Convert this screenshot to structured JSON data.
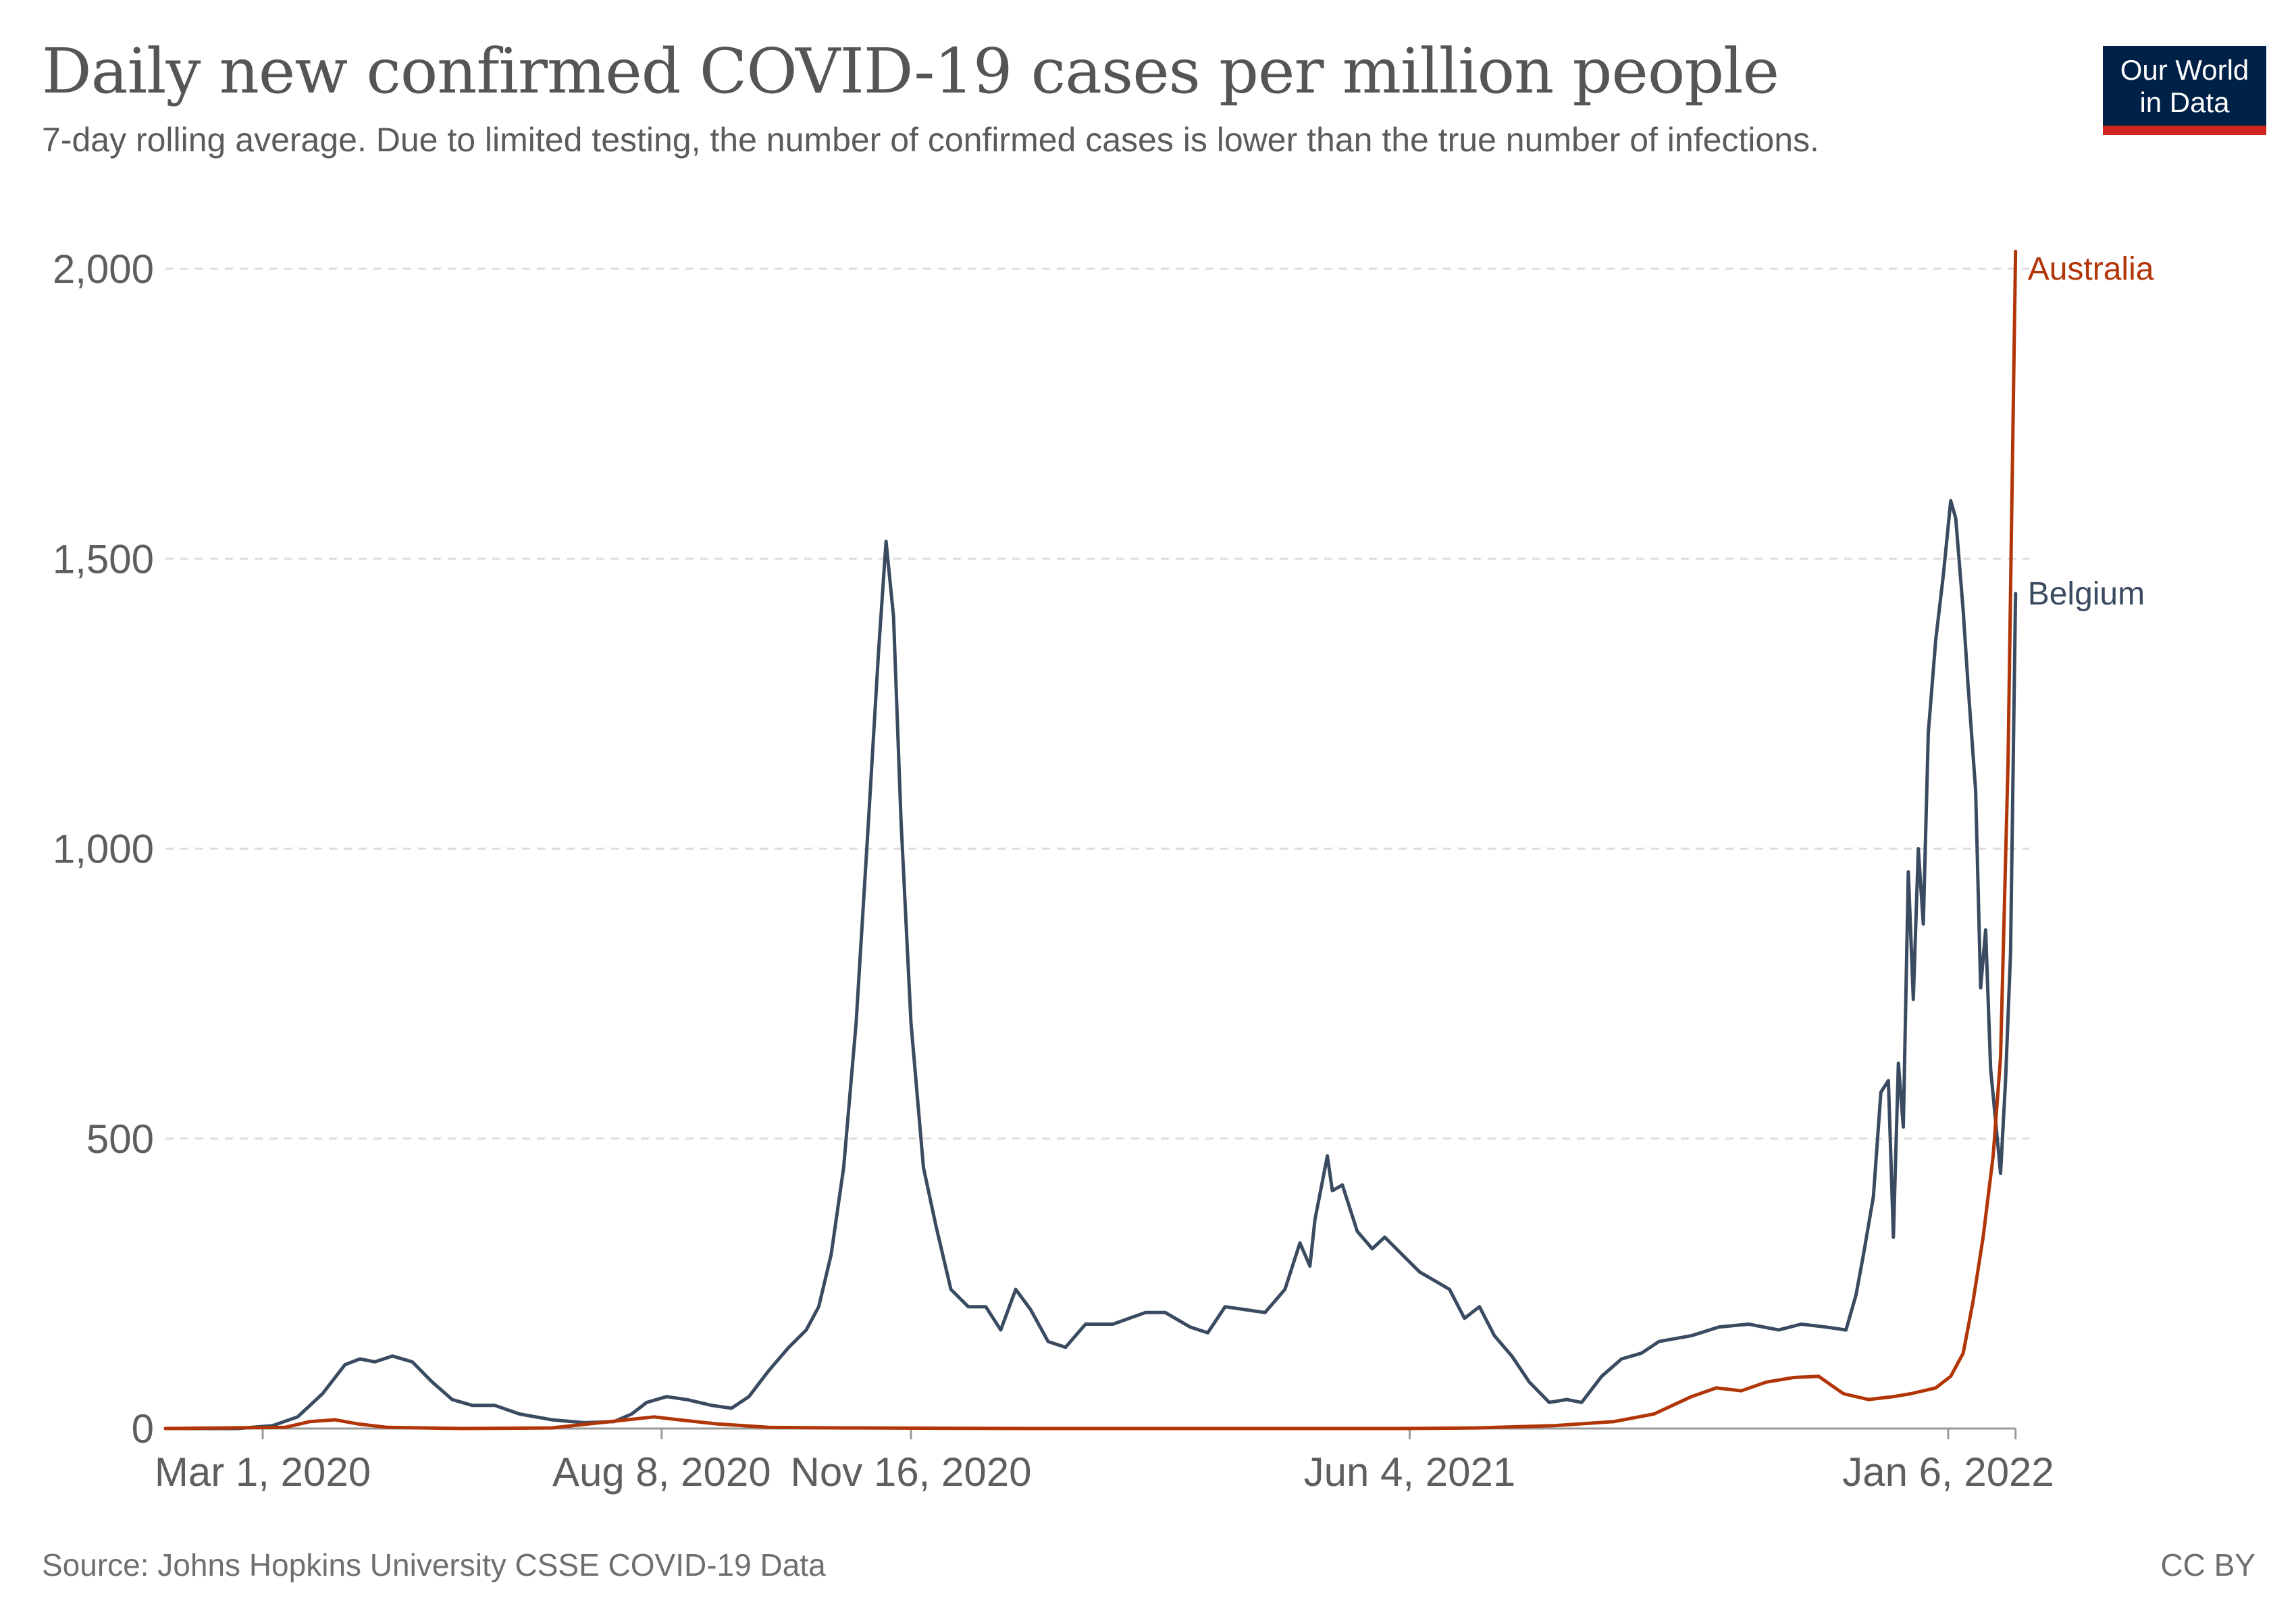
{
  "header": {
    "title": "Daily new confirmed COVID-19 cases per million people",
    "subtitle": "7-day rolling average. Due to limited testing, the number of confirmed cases is lower than the true number of infections.",
    "logo_line1": "Our World",
    "logo_line2": "in Data"
  },
  "footer": {
    "source": "Source: Johns Hopkins University CSSE COVID-19 Data",
    "license": "CC BY"
  },
  "colors": {
    "belgium": "#3a4a60",
    "australia": "#b13507",
    "grid": "#dddddd",
    "logo_bg": "#002147",
    "logo_bar": "#ce261e"
  },
  "chart_data": {
    "type": "line",
    "title": "Daily new confirmed COVID-19 cases per million people",
    "subtitle": "7-day rolling average. Due to limited testing, the number of confirmed cases is lower than the true number of infections.",
    "xlabel": "",
    "ylabel": "",
    "x_range": [
      "2020-01-22",
      "2022-01-22"
    ],
    "ylim": [
      0,
      2000
    ],
    "y_ticks": [
      0,
      500,
      1000,
      1500,
      2000
    ],
    "y_tick_labels": [
      "0",
      "500",
      "1,000",
      "1,500",
      "2,000"
    ],
    "x_ticks": [
      "2020-03-01",
      "2020-08-08",
      "2020-11-16",
      "2021-06-04",
      "2022-01-06"
    ],
    "x_tick_labels": [
      "Mar 1, 2020",
      "Aug 8, 2020",
      "Nov 16, 2020",
      "Jun 4, 2021",
      "Jan 6, 2022"
    ],
    "grid": "horizontal dashed",
    "legend": "inline labels at line ends",
    "series": [
      {
        "name": "Belgium",
        "color": "#3a4a60",
        "points": [
          [
            "2020-01-22",
            0
          ],
          [
            "2020-02-20",
            0
          ],
          [
            "2020-03-05",
            5
          ],
          [
            "2020-03-15",
            20
          ],
          [
            "2020-03-25",
            60
          ],
          [
            "2020-04-03",
            110
          ],
          [
            "2020-04-09",
            120
          ],
          [
            "2020-04-15",
            115
          ],
          [
            "2020-04-22",
            125
          ],
          [
            "2020-04-30",
            115
          ],
          [
            "2020-05-08",
            80
          ],
          [
            "2020-05-16",
            50
          ],
          [
            "2020-05-24",
            40
          ],
          [
            "2020-06-02",
            40
          ],
          [
            "2020-06-12",
            25
          ],
          [
            "2020-06-25",
            15
          ],
          [
            "2020-07-08",
            10
          ],
          [
            "2020-07-20",
            12
          ],
          [
            "2020-07-27",
            25
          ],
          [
            "2020-08-02",
            45
          ],
          [
            "2020-08-10",
            55
          ],
          [
            "2020-08-18",
            50
          ],
          [
            "2020-08-28",
            40
          ],
          [
            "2020-09-05",
            35
          ],
          [
            "2020-09-12",
            55
          ],
          [
            "2020-09-20",
            100
          ],
          [
            "2020-09-28",
            140
          ],
          [
            "2020-10-05",
            170
          ],
          [
            "2020-10-10",
            210
          ],
          [
            "2020-10-15",
            300
          ],
          [
            "2020-10-20",
            450
          ],
          [
            "2020-10-25",
            700
          ],
          [
            "2020-10-30",
            1050
          ],
          [
            "2020-11-03",
            1340
          ],
          [
            "2020-11-06",
            1530
          ],
          [
            "2020-11-09",
            1400
          ],
          [
            "2020-11-12",
            1050
          ],
          [
            "2020-11-16",
            700
          ],
          [
            "2020-11-21",
            450
          ],
          [
            "2020-11-26",
            350
          ],
          [
            "2020-12-02",
            240
          ],
          [
            "2020-12-09",
            210
          ],
          [
            "2020-12-16",
            210
          ],
          [
            "2020-12-22",
            170
          ],
          [
            "2020-12-28",
            240
          ],
          [
            "2021-01-03",
            205
          ],
          [
            "2021-01-10",
            150
          ],
          [
            "2021-01-17",
            140
          ],
          [
            "2021-01-25",
            180
          ],
          [
            "2021-02-05",
            180
          ],
          [
            "2021-02-18",
            200
          ],
          [
            "2021-02-26",
            200
          ],
          [
            "2021-03-08",
            175
          ],
          [
            "2021-03-15",
            165
          ],
          [
            "2021-03-22",
            210
          ],
          [
            "2021-03-30",
            205
          ],
          [
            "2021-04-07",
            200
          ],
          [
            "2021-04-15",
            240
          ],
          [
            "2021-04-21",
            320
          ],
          [
            "2021-04-25",
            280
          ],
          [
            "2021-04-27",
            360
          ],
          [
            "2021-05-02",
            470
          ],
          [
            "2021-05-04",
            410
          ],
          [
            "2021-05-08",
            420
          ],
          [
            "2021-05-14",
            340
          ],
          [
            "2021-05-20",
            310
          ],
          [
            "2021-05-25",
            330
          ],
          [
            "2021-06-01",
            300
          ],
          [
            "2021-06-08",
            270
          ],
          [
            "2021-06-14",
            255
          ],
          [
            "2021-06-20",
            240
          ],
          [
            "2021-06-26",
            190
          ],
          [
            "2021-07-02",
            210
          ],
          [
            "2021-07-08",
            160
          ],
          [
            "2021-07-15",
            125
          ],
          [
            "2021-07-22",
            80
          ],
          [
            "2021-07-30",
            45
          ],
          [
            "2021-08-06",
            50
          ],
          [
            "2021-08-12",
            45
          ],
          [
            "2021-08-20",
            90
          ],
          [
            "2021-08-28",
            120
          ],
          [
            "2021-09-05",
            130
          ],
          [
            "2021-09-12",
            150
          ],
          [
            "2021-09-25",
            160
          ],
          [
            "2021-10-06",
            175
          ],
          [
            "2021-10-18",
            180
          ],
          [
            "2021-10-30",
            170
          ],
          [
            "2021-11-08",
            180
          ],
          [
            "2021-11-18",
            175
          ],
          [
            "2021-11-26",
            170
          ],
          [
            "2021-11-30",
            230
          ],
          [
            "2021-12-03",
            300
          ],
          [
            "2021-12-07",
            400
          ],
          [
            "2021-12-10",
            580
          ],
          [
            "2021-12-13",
            600
          ],
          [
            "2021-12-15",
            330
          ],
          [
            "2021-12-17",
            630
          ],
          [
            "2021-12-19",
            520
          ],
          [
            "2021-12-21",
            960
          ],
          [
            "2021-12-23",
            740
          ],
          [
            "2021-12-25",
            1000
          ],
          [
            "2021-12-27",
            870
          ],
          [
            "2021-12-29",
            1200
          ],
          [
            "2022-01-01",
            1360
          ],
          [
            "2022-01-04",
            1470
          ],
          [
            "2022-01-07",
            1600
          ],
          [
            "2022-01-09",
            1570
          ],
          [
            "2022-01-12",
            1410
          ],
          [
            "2022-01-14",
            1280
          ],
          [
            "2022-01-17",
            1100
          ],
          [
            "2022-01-19",
            760
          ],
          [
            "2022-01-21",
            860
          ],
          [
            "2022-01-23",
            620
          ],
          [
            "2022-01-25",
            530
          ],
          [
            "2022-01-27",
            440
          ],
          [
            "2022-01-29",
            600
          ],
          [
            "2022-01-31",
            820
          ],
          [
            "2022-02-02",
            1440
          ]
        ]
      },
      {
        "name": "Australia",
        "color": "#b13507",
        "points": [
          [
            "2020-01-22",
            0
          ],
          [
            "2020-03-10",
            2
          ],
          [
            "2020-03-20",
            12
          ],
          [
            "2020-03-30",
            15
          ],
          [
            "2020-04-08",
            8
          ],
          [
            "2020-04-20",
            2
          ],
          [
            "2020-05-20",
            0
          ],
          [
            "2020-06-25",
            1
          ],
          [
            "2020-07-10",
            8
          ],
          [
            "2020-07-25",
            15
          ],
          [
            "2020-08-05",
            20
          ],
          [
            "2020-08-15",
            15
          ],
          [
            "2020-08-30",
            8
          ],
          [
            "2020-09-20",
            2
          ],
          [
            "2020-10-20",
            1
          ],
          [
            "2021-01-01",
            0
          ],
          [
            "2021-03-01",
            0
          ],
          [
            "2021-06-01",
            0
          ],
          [
            "2021-07-01",
            1
          ],
          [
            "2021-08-01",
            5
          ],
          [
            "2021-08-25",
            12
          ],
          [
            "2021-09-10",
            25
          ],
          [
            "2021-09-25",
            55
          ],
          [
            "2021-10-05",
            70
          ],
          [
            "2021-10-15",
            65
          ],
          [
            "2021-10-25",
            80
          ],
          [
            "2021-11-05",
            88
          ],
          [
            "2021-11-15",
            90
          ],
          [
            "2021-11-25",
            60
          ],
          [
            "2021-12-05",
            50
          ],
          [
            "2021-12-15",
            55
          ],
          [
            "2021-12-22",
            60
          ],
          [
            "2022-01-01",
            70
          ],
          [
            "2022-01-07",
            90
          ],
          [
            "2022-01-12",
            130
          ],
          [
            "2022-01-16",
            220
          ],
          [
            "2022-01-20",
            330
          ],
          [
            "2022-01-24",
            470
          ],
          [
            "2022-01-27",
            640
          ],
          [
            "2022-01-30",
            1150
          ],
          [
            "2022-02-02",
            2030
          ]
        ]
      }
    ]
  }
}
